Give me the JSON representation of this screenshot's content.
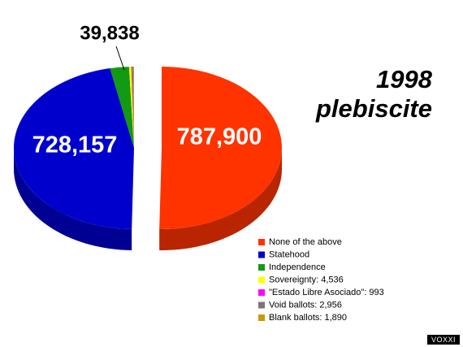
{
  "chart_data": {
    "type": "pie",
    "title": "1998 plebiscite",
    "categories": [
      "None of the above",
      "Statehood",
      "Independence",
      "Sovereignty: 4,536",
      "\"Estado Libre Asociado\": 993",
      "Void ballots: 2,956",
      "Blank ballots: 1,890"
    ],
    "values": [
      787900,
      728157,
      39838,
      4536,
      993,
      2956,
      1890
    ],
    "value_labels": [
      "787,900",
      "728,157",
      "39,838",
      null,
      null,
      null,
      null
    ],
    "colors": [
      "#ff3300",
      "#0000cc",
      "#129a12",
      "#ffff00",
      "#ff00ff",
      "#777777",
      "#cc9900"
    ]
  },
  "watermark": "VOXXI"
}
